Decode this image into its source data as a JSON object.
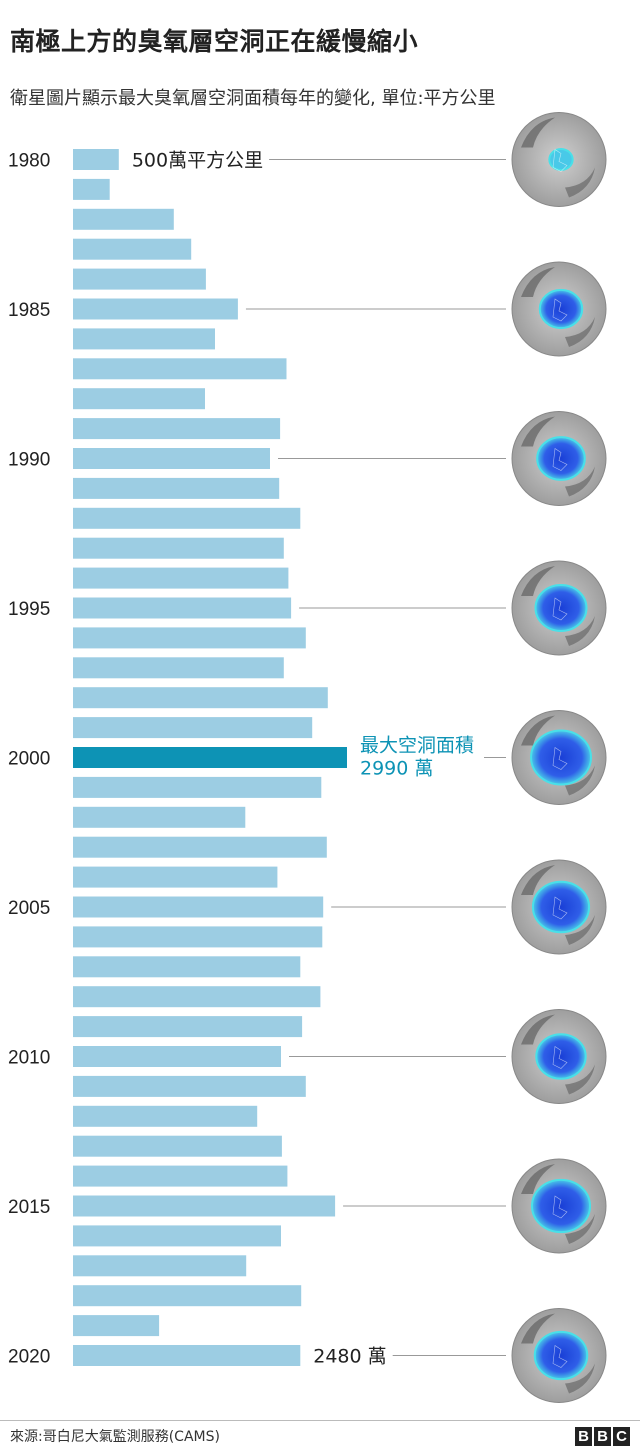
{
  "title": "南極上方的臭氧層空洞正在緩慢縮小",
  "subtitle": "衛星圖片顯示最大臭氧層空洞面積每年的變化, 單位:平方公里",
  "source": "來源:哥白尼大氣監測服務(CAMS)",
  "logo": [
    "B",
    "B",
    "C"
  ],
  "colors": {
    "bar": "#9ccde3",
    "highlight": "#0d93b5",
    "line": "#999999"
  },
  "chart_data": {
    "type": "bar",
    "orientation": "horizontal",
    "unit": "萬平方公里",
    "categories": [
      1980,
      1981,
      1982,
      1983,
      1984,
      1985,
      1986,
      1987,
      1988,
      1989,
      1990,
      1991,
      1992,
      1993,
      1994,
      1995,
      1996,
      1997,
      1998,
      1999,
      2000,
      2001,
      2002,
      2003,
      2004,
      2005,
      2006,
      2007,
      2008,
      2009,
      2010,
      2011,
      2012,
      2013,
      2014,
      2015,
      2016,
      2017,
      2018,
      2019,
      2020
    ],
    "values": [
      500,
      400,
      1100,
      1290,
      1450,
      1800,
      1550,
      2330,
      1440,
      2260,
      2150,
      2250,
      2480,
      2300,
      2350,
      2380,
      2540,
      2300,
      2780,
      2610,
      2990,
      2710,
      1880,
      2770,
      2230,
      2730,
      2720,
      2480,
      2700,
      2500,
      2270,
      2540,
      2010,
      2280,
      2340,
      2860,
      2270,
      1890,
      2490,
      940,
      2480
    ],
    "highlight": 2000,
    "year_labels": [
      "1980",
      "1985",
      "1990",
      "1995",
      "2000",
      "2005",
      "2010",
      "2015",
      "2020"
    ],
    "annotations": [
      {
        "year": 1980,
        "lines": [
          "500萬平方公里"
        ],
        "style": "normal"
      },
      {
        "year": 2000,
        "lines": [
          "最大空洞面積",
          "2990 萬"
        ],
        "style": "highlight"
      },
      {
        "year": 2020,
        "lines": [
          "2480 萬"
        ],
        "style": "normal"
      }
    ],
    "thumbnails": [
      1980,
      1985,
      1990,
      1995,
      2000,
      2005,
      2010,
      2015,
      2020
    ],
    "xlim": [
      0,
      3000
    ]
  }
}
